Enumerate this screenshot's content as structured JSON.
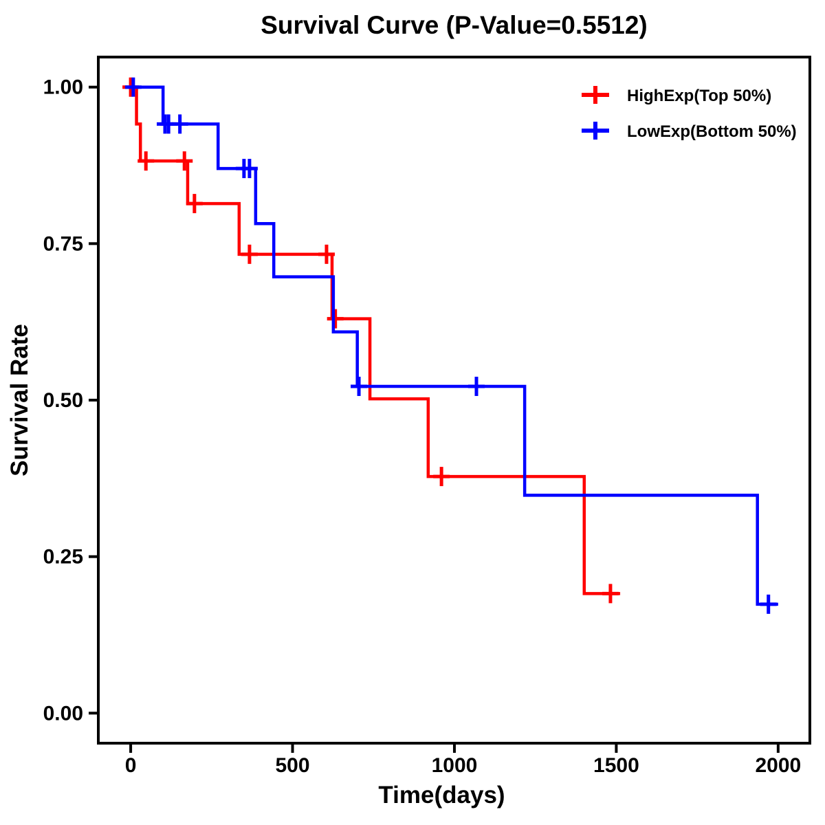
{
  "page": {
    "background": "#FFFFFF",
    "text_color": "#000000"
  },
  "chart_data": {
    "type": "line",
    "subtype": "kaplan-meier-step-curve",
    "title": "Survival Curve (P-Value=0.5512)",
    "p_value": "0.5512",
    "xlabel": "Time(days)",
    "ylabel": "Survival Rate",
    "grid": false,
    "frame_color": "#000000",
    "legend_position": "top-right-inside",
    "xlim": [
      -100,
      2098
    ],
    "ylim": [
      -0.048,
      1.048
    ],
    "xticks": [
      0,
      500,
      1000,
      1500,
      2000
    ],
    "xtick_labels": [
      "0",
      "500",
      "1000",
      "1500",
      "2000"
    ],
    "yticks": [
      0.0,
      0.25,
      0.5,
      0.75,
      1.0
    ],
    "ytick_labels": [
      "0.00",
      "0.25",
      "0.50",
      "0.75",
      "1.00"
    ],
    "series": [
      {
        "name": "HighExp(Top 50%)",
        "color": "#FF0000",
        "steps": [
          [
            0,
            1.0
          ],
          [
            18,
            0.941
          ],
          [
            30,
            0.882
          ],
          [
            176,
            0.814
          ],
          [
            335,
            0.733
          ],
          [
            622,
            0.63
          ],
          [
            739,
            0.502
          ],
          [
            919,
            0.378
          ],
          [
            1401,
            0.191
          ]
        ],
        "end_time": 1512,
        "censors": [
          [
            0,
            1.0
          ],
          [
            47,
            0.882
          ],
          [
            166,
            0.882
          ],
          [
            197,
            0.814
          ],
          [
            367,
            0.733
          ],
          [
            605,
            0.733
          ],
          [
            632,
            0.63
          ],
          [
            960,
            0.378
          ],
          [
            1482,
            0.191
          ]
        ]
      },
      {
        "name": "LowExp(Bottom 50%)",
        "color": "#0000FF",
        "steps": [
          [
            0,
            1.0
          ],
          [
            100,
            0.941
          ],
          [
            270,
            0.87
          ],
          [
            386,
            0.782
          ],
          [
            442,
            0.697
          ],
          [
            626,
            0.609
          ],
          [
            700,
            0.522
          ],
          [
            1217,
            0.348
          ],
          [
            1936,
            0.174
          ]
        ],
        "end_time": 2000,
        "censors": [
          [
            8,
            1.0
          ],
          [
            106,
            0.941
          ],
          [
            117,
            0.941
          ],
          [
            152,
            0.941
          ],
          [
            350,
            0.87
          ],
          [
            367,
            0.87
          ],
          [
            705,
            0.522
          ],
          [
            1068,
            0.522
          ],
          [
            1970,
            0.174
          ]
        ]
      }
    ]
  }
}
